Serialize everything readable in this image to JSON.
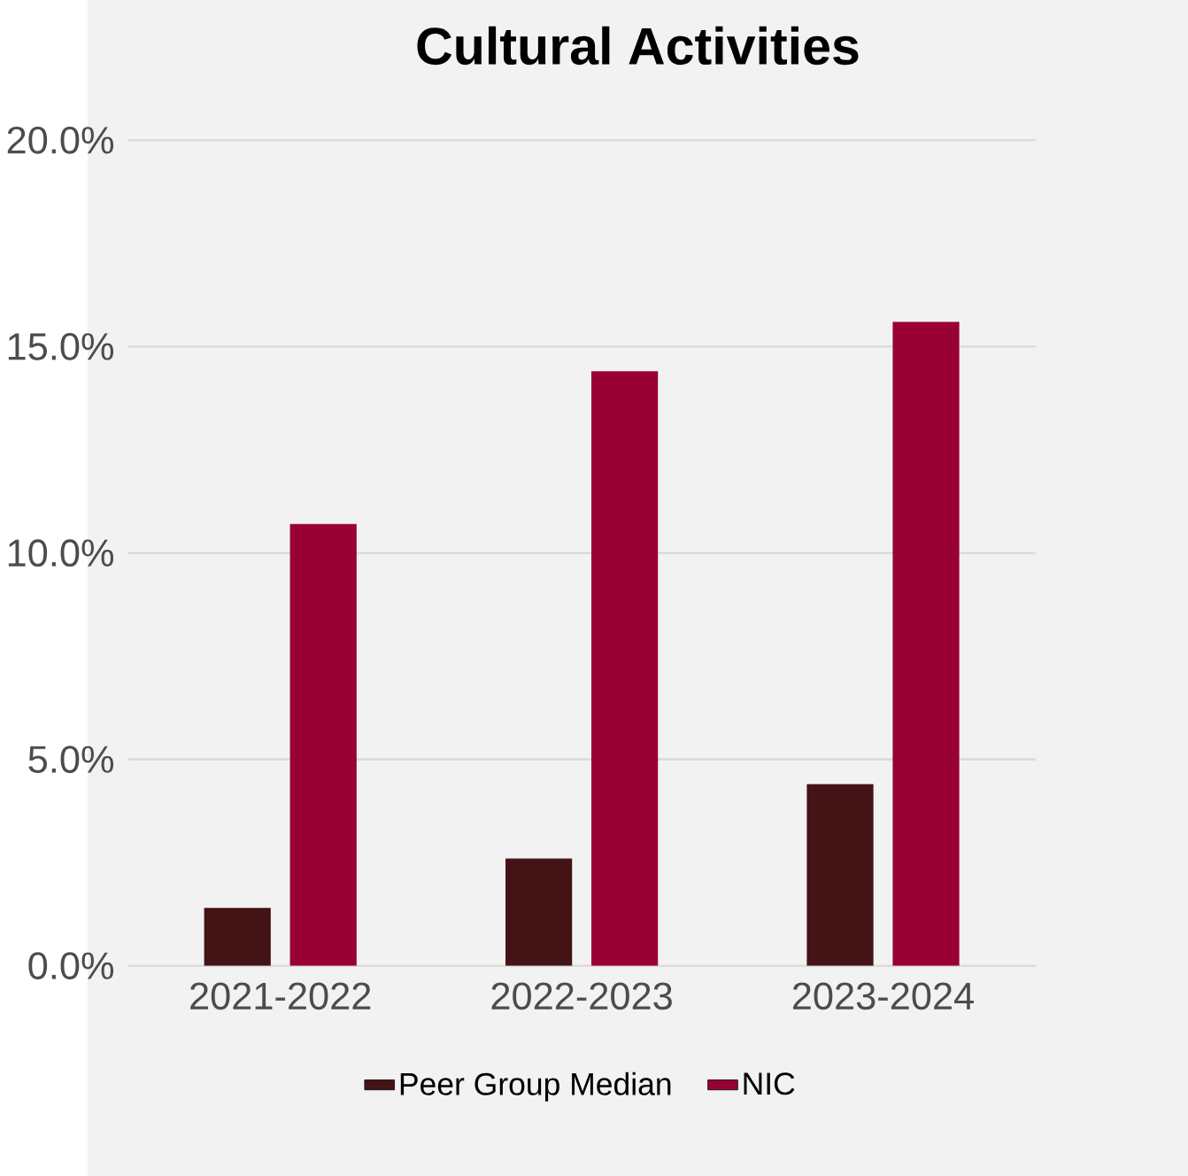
{
  "chart_data": {
    "type": "bar",
    "title": "Cultural Activities",
    "categories": [
      "2021-2022",
      "2022-2023",
      "2023-2024"
    ],
    "series": [
      {
        "name": "Peer Group Median",
        "color": "#431316",
        "values": [
          1.4,
          2.6,
          4.4
        ]
      },
      {
        "name": "NIC",
        "color": "#990033",
        "values": [
          10.7,
          14.4,
          15.6
        ]
      }
    ],
    "ylim": [
      0,
      20
    ],
    "yticks": [
      {
        "value": 0,
        "label": "0.0%"
      },
      {
        "value": 5,
        "label": "5.0%"
      },
      {
        "value": 10,
        "label": "10.0%"
      },
      {
        "value": 15,
        "label": "15.0%"
      },
      {
        "value": 20,
        "label": "20.0%"
      }
    ],
    "grid": "y",
    "legend": "bottom"
  }
}
